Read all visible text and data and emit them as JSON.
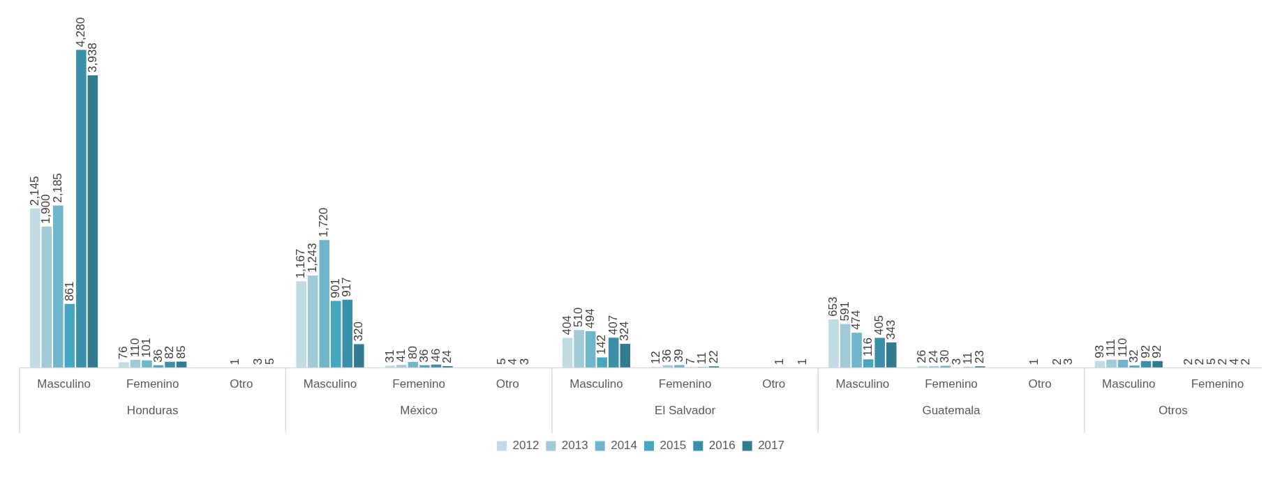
{
  "chart_data": {
    "type": "bar",
    "categories": [
      "Masculino",
      "Femenino",
      "Otro",
      "Masculino",
      "Femenino",
      "Otro",
      "Masculino",
      "Femenino",
      "Otro",
      "Masculino",
      "Femenino",
      "Otro",
      "Masculino",
      "Femenino"
    ],
    "series": [
      {
        "name": "2012",
        "color": "#c0dbe4",
        "values": [
          2145,
          76,
          null,
          1167,
          31,
          null,
          404,
          12,
          null,
          653,
          26,
          null,
          93,
          2
        ],
        "value_labels": [
          "2,145",
          "76",
          null,
          "1,167",
          "31",
          null,
          "404",
          "12",
          null,
          "653",
          "26",
          null,
          "93",
          "2"
        ]
      },
      {
        "name": "2013",
        "color": "#a1cad9",
        "values": [
          1900,
          110,
          null,
          1243,
          41,
          null,
          510,
          36,
          null,
          591,
          24,
          null,
          111,
          2
        ],
        "value_labels": [
          "1,900",
          "110",
          null,
          "1,243",
          "41",
          null,
          "510",
          "36",
          null,
          "591",
          "24",
          null,
          "111",
          "2"
        ]
      },
      {
        "name": "2014",
        "color": "#6fb6cc",
        "values": [
          2185,
          101,
          1,
          1720,
          80,
          5,
          494,
          39,
          null,
          474,
          30,
          1,
          110,
          5
        ],
        "value_labels": [
          "2,185",
          "101",
          "1",
          "1,720",
          "80",
          "5",
          "494",
          "39",
          null,
          "474",
          "30",
          "1",
          "110",
          "5"
        ]
      },
      {
        "name": "2015",
        "color": "#46a5bf",
        "values": [
          861,
          36,
          null,
          901,
          36,
          4,
          142,
          7,
          1,
          116,
          3,
          null,
          32,
          2
        ],
        "value_labels": [
          "861",
          "36",
          null,
          "901",
          "36",
          "4",
          "142",
          "7",
          "1",
          "116",
          "3",
          null,
          "32",
          "2"
        ]
      },
      {
        "name": "2016",
        "color": "#3b8fa8",
        "values": [
          4280,
          82,
          3,
          917,
          46,
          3,
          407,
          11,
          null,
          405,
          11,
          2,
          92,
          4
        ],
        "value_labels": [
          "4,280",
          "82",
          "3",
          "917",
          "46",
          "3",
          "407",
          "11",
          null,
          "405",
          "11",
          "2",
          "92",
          "4"
        ]
      },
      {
        "name": "2017",
        "color": "#337b91",
        "values": [
          3938,
          85,
          5,
          320,
          24,
          null,
          324,
          22,
          1,
          343,
          23,
          3,
          92,
          2
        ],
        "value_labels": [
          "3,938",
          "85",
          "5",
          "320",
          "24",
          null,
          "324",
          "22",
          "1",
          "343",
          "23",
          "3",
          "92",
          "2"
        ]
      }
    ],
    "annotations": [
      "Honduras",
      "México",
      "El Salvador",
      "Guatemala",
      "Otros"
    ],
    "legend": "bottom",
    "grid": false
  }
}
